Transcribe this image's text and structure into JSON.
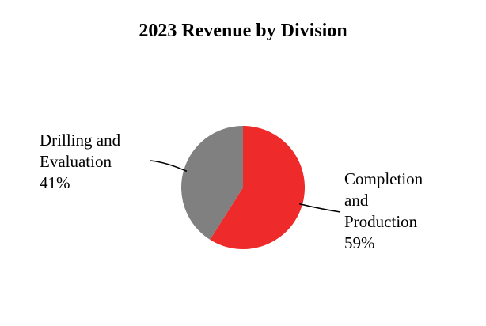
{
  "chart_data": {
    "type": "pie",
    "title": "2023 Revenue by Division",
    "slices": [
      {
        "label_lines": [
          "Completion",
          "and",
          "Production"
        ],
        "pct": "59%",
        "value": 59,
        "color": "#ee2a2a"
      },
      {
        "label_lines": [
          "Drilling and",
          "Evaluation"
        ],
        "pct": "41%",
        "value": 41,
        "color": "#808080"
      }
    ],
    "start_angle_deg": 0,
    "direction": "clockwise",
    "label_leader_color": "#000000"
  }
}
